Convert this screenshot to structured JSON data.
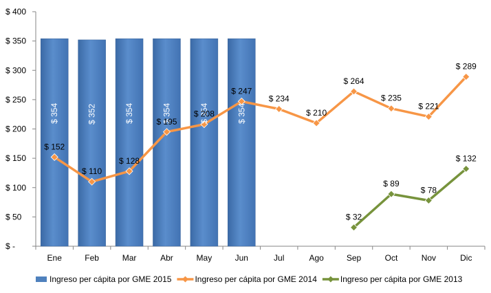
{
  "chart_data": {
    "type": "bar",
    "categories": [
      "Ene",
      "Feb",
      "Mar",
      "Abr",
      "May",
      "Jun",
      "Jul",
      "Ago",
      "Sep",
      "Oct",
      "Nov",
      "Dic"
    ],
    "y_ticks": [
      "$ -",
      "$ 50",
      "$ 100",
      "$ 150",
      "$ 200",
      "$ 250",
      "$ 300",
      "$ 350",
      "$ 400"
    ],
    "ylim": [
      0,
      400
    ],
    "grid": false,
    "legend_position": "bottom",
    "series": [
      {
        "name": "Ingreso per cápita por GME 2015",
        "kind": "bar",
        "color": "#4f81bd",
        "values": [
          354,
          352,
          354,
          354,
          354,
          354,
          null,
          null,
          null,
          null,
          null,
          null
        ],
        "labels": [
          "$ 354",
          "$ 352",
          "$ 354",
          "$ 354",
          "$ 354",
          "$ 354",
          null,
          null,
          null,
          null,
          null,
          null
        ]
      },
      {
        "name": "Ingreso per cápita por GME 2014",
        "kind": "line",
        "color": "#f79646",
        "values": [
          152,
          110,
          128,
          195,
          208,
          247,
          234,
          210,
          264,
          235,
          221,
          289
        ],
        "labels": [
          "$ 152",
          "$ 110",
          "$ 128",
          "$ 195",
          "$ 208",
          "$ 247",
          "$ 234",
          "$ 210",
          "$ 264",
          "$ 235",
          "$ 221",
          "$ 289"
        ]
      },
      {
        "name": "Ingreso per cápita por GME 2013",
        "kind": "line",
        "color": "#77933c",
        "values": [
          null,
          null,
          null,
          null,
          null,
          null,
          null,
          null,
          32,
          89,
          78,
          132
        ],
        "labels": [
          null,
          null,
          null,
          null,
          null,
          null,
          null,
          null,
          "$ 32",
          "$ 89",
          "$ 78",
          "$ 132"
        ]
      }
    ]
  }
}
